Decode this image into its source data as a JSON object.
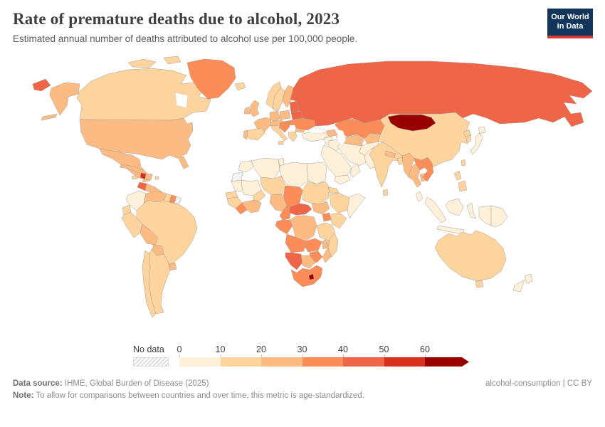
{
  "header": {
    "title": "Rate of premature deaths due to alcohol, 2023",
    "subtitle": "Estimated annual number of deaths attributed to alcohol use per 100,000 people."
  },
  "logo": {
    "line1": "Our World",
    "line2": "in Data",
    "bg": "#12355c",
    "accent": "#d7382f"
  },
  "legend": {
    "no_data_label": "No data",
    "tick_labels": [
      "0",
      "10",
      "20",
      "30",
      "40",
      "50",
      "60"
    ],
    "thresholds": [
      0,
      10,
      20,
      30,
      40,
      50,
      60
    ],
    "colors": [
      "#fef0d9",
      "#fdd49e",
      "#fdbb84",
      "#fc8d59",
      "#ef6548",
      "#d7301f",
      "#990000"
    ],
    "no_data_stripe": "#d4d4d4"
  },
  "footer": {
    "source_label": "Data source:",
    "source_value": "IHME, Global Burden of Disease (2025)",
    "credit": "alcohol-consumption | CC BY",
    "note_label": "Note:",
    "note_value": "To allow for comparisons between countries and over time, this metric is age-standardized."
  },
  "chart_data": {
    "type": "choropleth",
    "title": "Rate of premature deaths due to alcohol",
    "year": 2023,
    "unit": "deaths attributed to alcohol use per 100,000 people",
    "legend_bins": [
      "0-10",
      "10-20",
      "20-30",
      "30-40",
      "40-50",
      "50-60",
      "60+"
    ],
    "no_data": [
      "western-sahara",
      "french-guiana"
    ],
    "values": {
      "canada": 14,
      "united-states": 25,
      "greenland": 34,
      "iceland": 15,
      "mexico": 24,
      "guatemala": 43,
      "central-america": 25,
      "cuba": 22,
      "jamaica": 15,
      "haiti": 55,
      "dominican-republic": 24,
      "puerto-rico": 15,
      "colombia": 7,
      "venezuela": 24,
      "guyana": 16,
      "suriname": 33,
      "ecuador": 15,
      "peru": 16,
      "brazil": 17,
      "bolivia": 24,
      "paraguay": 26,
      "uruguay": 22,
      "argentina": 18,
      "chile": 17,
      "norway": 13,
      "sweden": 15,
      "finland": 22,
      "denmark": 16,
      "united-kingdom": 24,
      "ireland": 23,
      "france": 21,
      "portugal": 22,
      "spain": 14,
      "germany": 23,
      "poland": 28,
      "czechia-austria": 26,
      "italy": 13,
      "balkans": 34,
      "hungary-slovakia": 33,
      "romania": 35,
      "bulgaria": 27,
      "greece": 13,
      "baltic-states": 43,
      "belarus": 42,
      "ukraine": 37,
      "turkey": 5,
      "russia": 45,
      "kazakhstan": 34,
      "caucasus": 24,
      "uzbekistan-turkmenistan": 23,
      "kyrgyzstan-tajikistan": 24,
      "syria-levant": 4,
      "iraq": 6,
      "iran": 4,
      "saudi-arabia": 2,
      "yemen": 3,
      "oman": 4,
      "afghanistan": 5,
      "pakistan": 6,
      "india": 15,
      "nepal": 24,
      "bangladesh": 12,
      "sri-lanka": 15,
      "china": 17,
      "mongolia": 66,
      "north-korea": 16,
      "south-korea": 16,
      "japan": 7,
      "taiwan": 13,
      "myanmar": 27,
      "laos": 34,
      "thailand": 26,
      "cambodia": 25,
      "vietnam": 33,
      "malaysia": 6,
      "philippines": 13,
      "indonesia": 4,
      "papua-new-guinea": 8,
      "australia": 16,
      "new-zealand": 8,
      "morocco": 7,
      "algeria": 5,
      "tunisia": 6,
      "libya": 3,
      "egypt": 5,
      "mauritania": 6,
      "mali": 8,
      "senegal": 13,
      "guinea": 15,
      "sierra-leone-liberia": 32,
      "burkina-faso": 17,
      "ivory-coast-ghana": 24,
      "niger": 12,
      "nigeria": 24,
      "chad": 36,
      "sudan": 13,
      "eritrea": 14,
      "ethiopia": 16,
      "somalia": 5,
      "cameroon": 34,
      "central-african-republic": 46,
      "south-sudan": 26,
      "uganda": 33,
      "kenya": 16,
      "gabon-congo": 36,
      "democratic-republic-of-congo": 26,
      "tanzania": 16,
      "angola": 35,
      "zambia": 34,
      "malawi": 24,
      "mozambique": 26,
      "zimbabwe": 33,
      "namibia": 44,
      "botswana": 27,
      "south-africa": 36,
      "lesotho": 63,
      "madagascar": 17
    }
  }
}
